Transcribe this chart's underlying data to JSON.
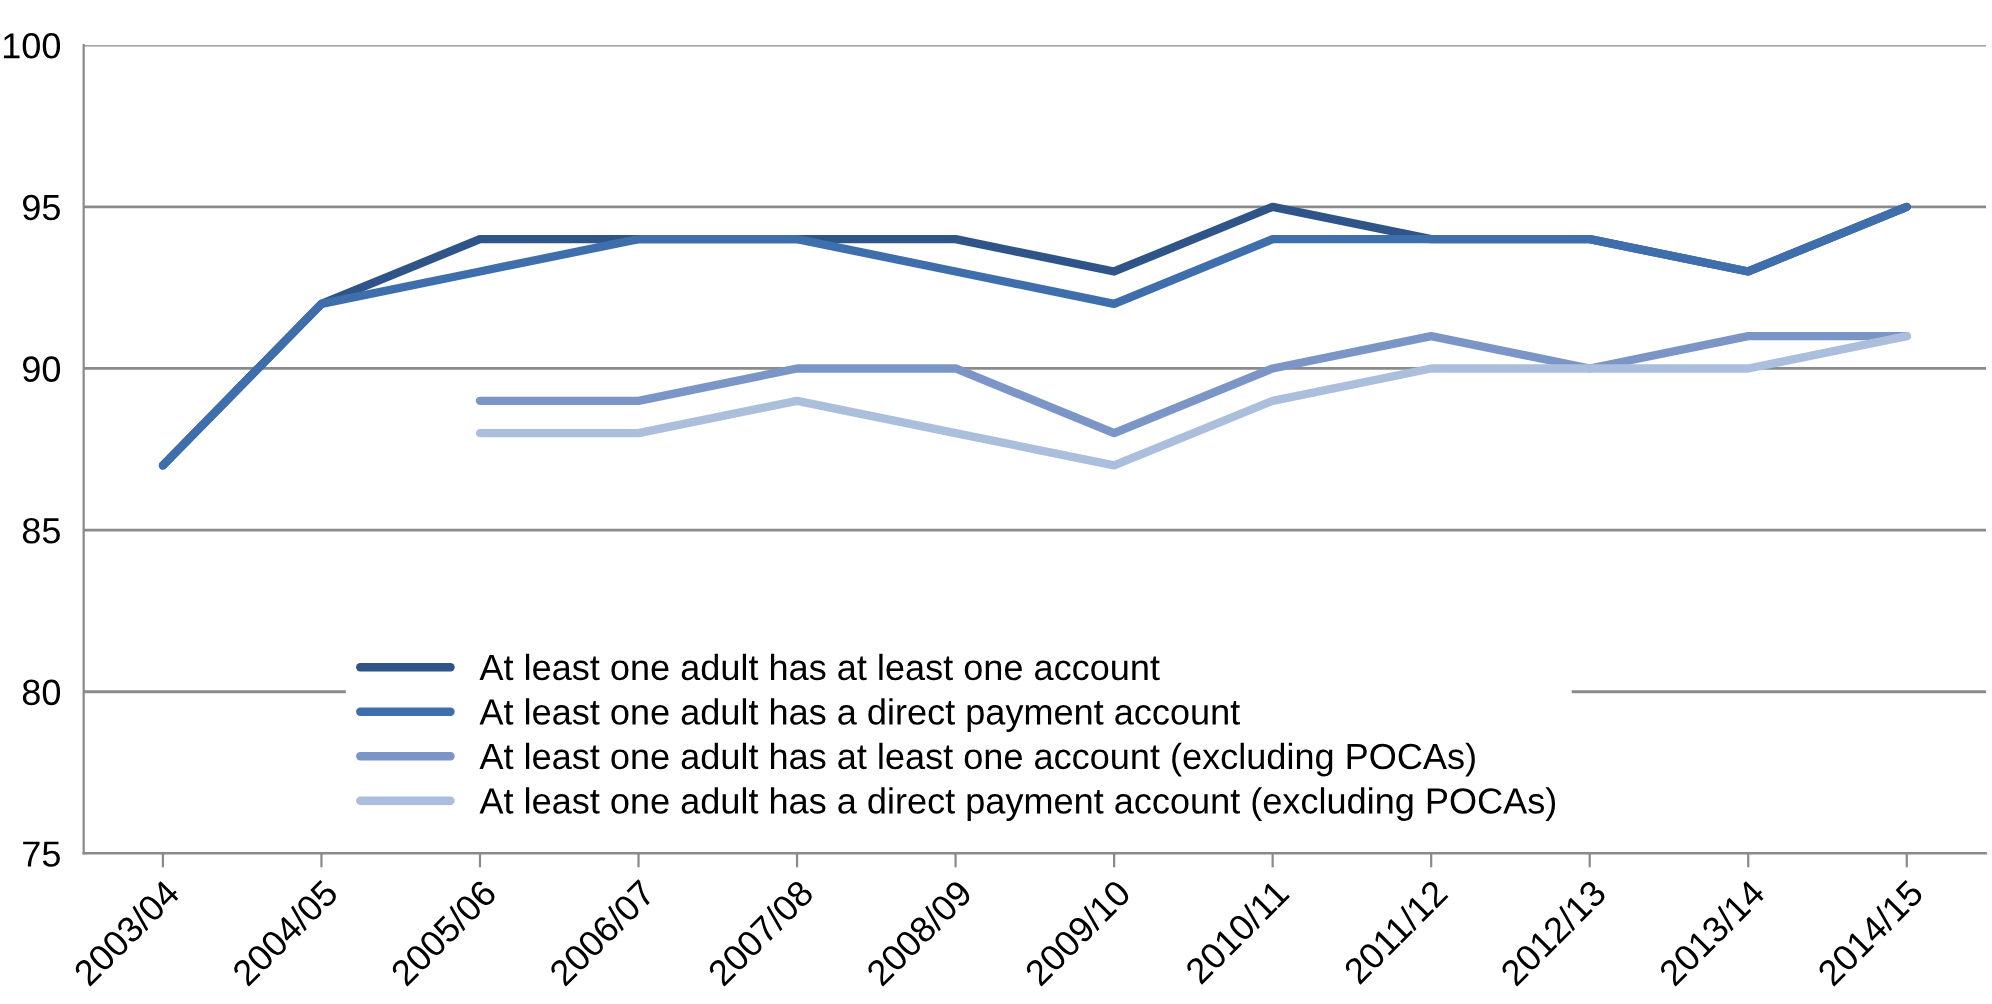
{
  "chart_data": {
    "type": "line",
    "categories": [
      "2003/04",
      "2004/05",
      "2005/06",
      "2006/07",
      "2007/08",
      "2008/09",
      "2009/10",
      "2010/11",
      "2011/12",
      "2012/13",
      "2013/14",
      "2014/15"
    ],
    "series": [
      {
        "name": "At least one adult has at least one account",
        "color": "#2f5588",
        "values": [
          87,
          92,
          94,
          94,
          94,
          94,
          93,
          95,
          94,
          94,
          93,
          95
        ]
      },
      {
        "name": "At least one adult has a direct payment account",
        "color": "#3e6eab",
        "values": [
          87,
          92,
          93,
          94,
          94,
          93,
          92,
          94,
          94,
          94,
          93,
          95
        ]
      },
      {
        "name": "At least one adult has at least one account (excluding POCAs)",
        "color": "#7b96c6",
        "values": [
          null,
          null,
          89,
          89,
          90,
          90,
          88,
          90,
          91,
          90,
          91,
          91
        ]
      },
      {
        "name": "At least one adult has a direct payment account (excluding POCAs)",
        "color": "#abbfdd",
        "values": [
          null,
          null,
          88,
          88,
          89,
          88,
          87,
          89,
          90,
          90,
          90,
          91
        ]
      }
    ],
    "ylim": [
      75,
      100
    ],
    "yticks": [
      75,
      80,
      85,
      90,
      95,
      100
    ],
    "grid": "y",
    "legend": "bottom",
    "marker": "none",
    "line_style": "solid"
  }
}
